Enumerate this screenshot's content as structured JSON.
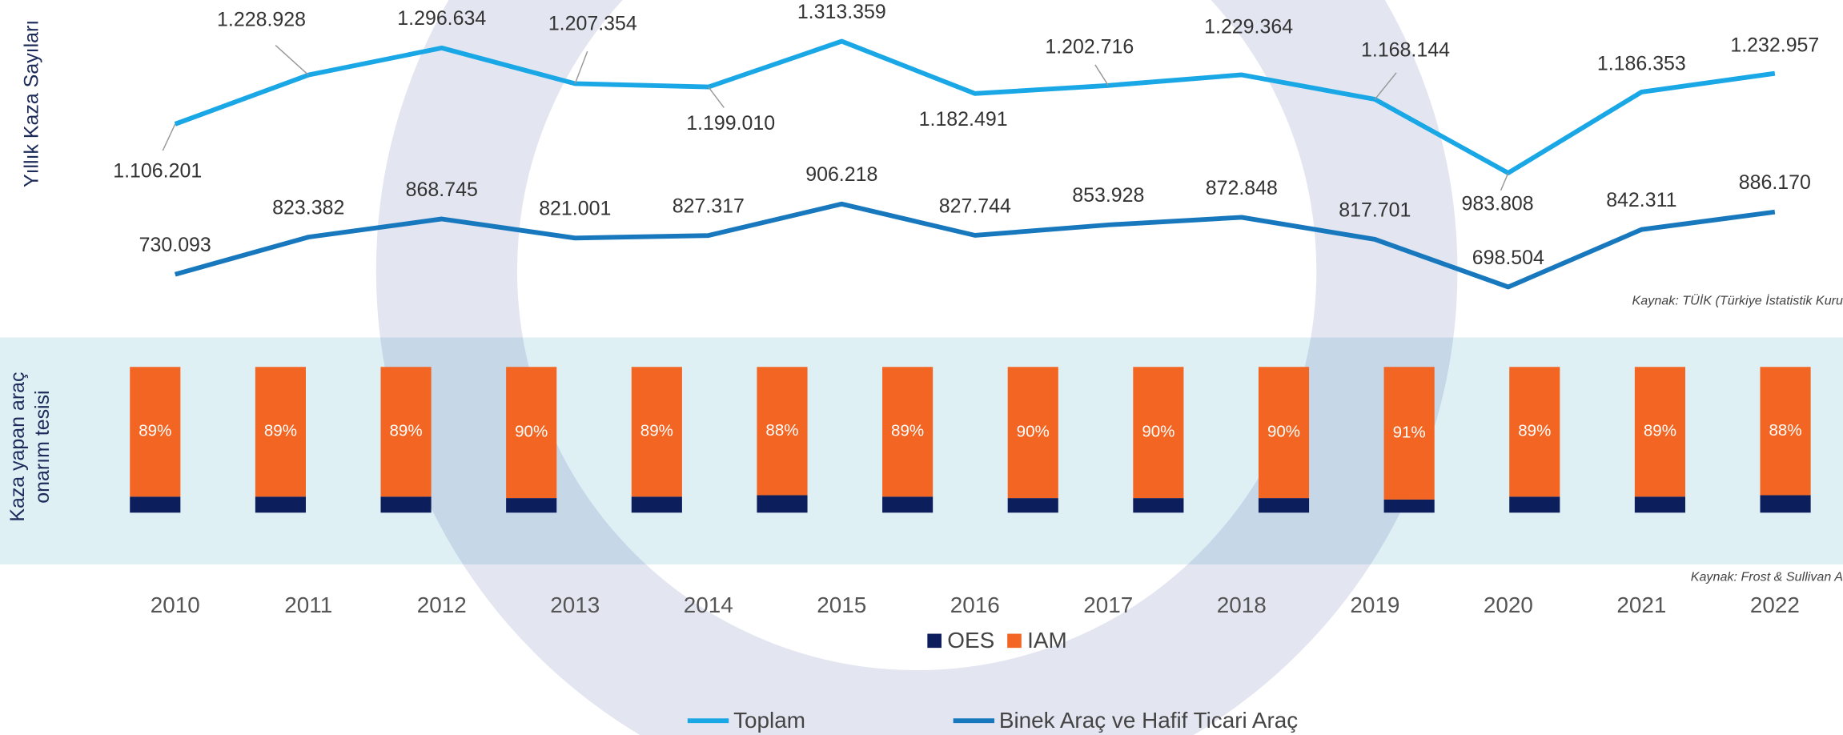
{
  "chart_data": [
    {
      "type": "line",
      "ylabel": "Yıllık Kaza Sayıları",
      "source": "Kaynak: TÜİK (Türkiye İstatistik Kuru",
      "categories": [
        "2010",
        "2011",
        "2012",
        "2013",
        "2014",
        "2015",
        "2016",
        "2017",
        "2018",
        "2019",
        "2020",
        "2021",
        "2022"
      ],
      "ylim": [
        600000,
        1400000
      ],
      "legend": "bottom",
      "series": [
        {
          "name": "Toplam",
          "color": "#1aa7e6",
          "values": [
            1106201,
            1228928,
            1296634,
            1207354,
            1199010,
            1313359,
            1182491,
            1202716,
            1229364,
            1168144,
            983808,
            1186353,
            1232957
          ],
          "value_labels": [
            "1.106.201",
            "1.228.928",
            "1.296.634",
            "1.207.354",
            "1.199.010",
            "1.313.359",
            "1.182.491",
            "1.202.716",
            "1.229.364",
            "1.168.144",
            "983.808",
            "1.186.353",
            "1.232.957"
          ]
        },
        {
          "name": "Binek Araç ve Hafif Ticari Araç",
          "color": "#1878be",
          "values": [
            730093,
            823382,
            868745,
            821001,
            827317,
            906218,
            827744,
            853928,
            872848,
            817701,
            698504,
            842311,
            886170
          ],
          "value_labels": [
            "730.093",
            "823.382",
            "868.745",
            "821.001",
            "827.317",
            "906.218",
            "827.744",
            "853.928",
            "872.848",
            "817.701",
            "698.504",
            "842.311",
            "886.170"
          ]
        }
      ]
    },
    {
      "type": "stacked_bar",
      "ylabel": [
        "Kaza yapan araç",
        "onarım tesisi"
      ],
      "source": "Kaynak: Frost & Sullivan A",
      "categories": [
        null,
        null,
        null,
        null,
        null,
        null,
        null,
        null,
        null,
        null,
        null,
        null,
        null,
        null
      ],
      "ylim": [
        0,
        100
      ],
      "legend": "bottom",
      "series": [
        {
          "name": "OES",
          "color": "#0c1f5c",
          "values": [
            11,
            11,
            11,
            10,
            11,
            12,
            11,
            10,
            10,
            10,
            9,
            11,
            11,
            12
          ]
        },
        {
          "name": "IAM",
          "color": "#f26522",
          "values": [
            89,
            89,
            89,
            90,
            89,
            88,
            89,
            90,
            90,
            90,
            91,
            89,
            89,
            88
          ],
          "value_labels": [
            "89%",
            "89%",
            "89%",
            "90%",
            "89%",
            "88%",
            "89%",
            "90%",
            "90%",
            "90%",
            "91%",
            "89%",
            "89%",
            "88%"
          ]
        }
      ]
    }
  ]
}
